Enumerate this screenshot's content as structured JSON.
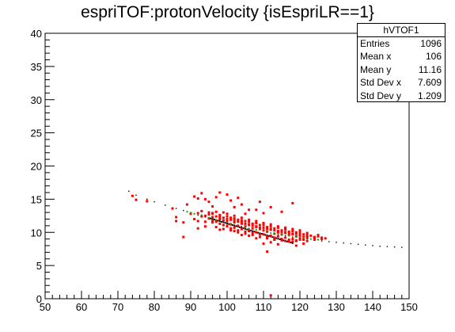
{
  "title": "espriTOF:protonVelocity {isEspriLR==1}",
  "stats_box": {
    "name": "hVTOF1",
    "rows": [
      {
        "label": "Entries",
        "value": "1096"
      },
      {
        "label": "Mean x",
        "value": "106"
      },
      {
        "label": "Mean y",
        "value": "11.16"
      },
      {
        "label": "Std Dev x",
        "value": "7.609"
      },
      {
        "label": "Std Dev y",
        "value": "1.209"
      }
    ]
  },
  "colors": {
    "marker_primary": "#ff0000",
    "marker_trend": "#000000",
    "marker_highlight": "#00aa00",
    "axes": "#000000",
    "background": "#ffffff"
  },
  "chart_data": {
    "type": "scatter",
    "title": "espriTOF:protonVelocity {isEspriLR==1}",
    "xlabel": "",
    "ylabel": "",
    "xlim": [
      50,
      150
    ],
    "ylim": [
      0,
      40
    ],
    "x_ticks": [
      50,
      60,
      70,
      80,
      90,
      100,
      110,
      120,
      130,
      140,
      150
    ],
    "y_ticks": [
      0,
      5,
      10,
      15,
      20,
      25,
      30,
      35,
      40
    ],
    "grid": false,
    "legend": "stats box top-right",
    "series": [
      {
        "trend_points": [
          [
            73,
            16.2
          ],
          [
            75,
            15.6
          ],
          [
            78,
            15.0
          ],
          [
            80,
            14.6
          ],
          [
            83,
            14.1
          ],
          [
            86,
            13.6
          ],
          [
            88,
            13.3
          ],
          [
            90,
            13.0
          ],
          [
            92,
            12.6
          ],
          [
            94,
            12.3
          ],
          [
            96,
            12.0
          ],
          [
            98,
            11.7
          ],
          [
            100,
            11.4
          ],
          [
            102,
            11.1
          ],
          [
            104,
            10.9
          ],
          [
            106,
            10.6
          ],
          [
            108,
            10.4
          ],
          [
            110,
            10.2
          ],
          [
            112,
            9.9
          ],
          [
            114,
            9.7
          ],
          [
            116,
            9.5
          ],
          [
            118,
            9.3
          ],
          [
            120,
            9.1
          ],
          [
            122,
            9.0
          ],
          [
            124,
            8.8
          ],
          [
            126,
            8.7
          ],
          [
            128,
            8.6
          ],
          [
            130,
            8.5
          ],
          [
            132,
            8.4
          ],
          [
            134,
            8.3
          ],
          [
            136,
            8.2
          ],
          [
            138,
            8.1
          ],
          [
            140,
            8.0
          ],
          [
            142,
            7.9
          ],
          [
            144,
            7.85
          ],
          [
            146,
            7.8
          ],
          [
            148,
            7.75
          ]
        ],
        "highlight_points": [
          [
            89,
            13.1
          ],
          [
            90,
            12.9
          ],
          [
            91,
            12.8
          ],
          [
            93,
            12.6
          ],
          [
            95,
            12.2
          ],
          [
            97,
            11.9
          ],
          [
            101,
            11.3
          ],
          [
            105,
            10.7
          ],
          [
            108,
            10.4
          ],
          [
            111,
            10.0
          ],
          [
            113,
            9.8
          ],
          [
            115,
            9.6
          ],
          [
            117,
            9.5
          ],
          [
            119,
            9.3
          ],
          [
            121,
            9.2
          ],
          [
            123,
            9.0
          ],
          [
            125,
            8.9
          ]
        ],
        "scatter_points": [
          [
            74,
            15.5
          ],
          [
            75,
            14.9
          ],
          [
            78,
            14.7
          ],
          [
            85,
            13.6
          ],
          [
            86,
            12.3
          ],
          [
            88,
            11.5
          ],
          [
            89,
            14.2
          ],
          [
            90,
            12.8
          ],
          [
            91,
            15.4
          ],
          [
            92,
            15.1
          ],
          [
            93,
            15.9
          ],
          [
            94,
            15.0
          ],
          [
            95,
            14.6
          ],
          [
            96,
            13.9
          ],
          [
            97,
            15.3
          ],
          [
            98,
            16.0
          ],
          [
            99,
            13.0
          ],
          [
            100,
            15.7
          ],
          [
            101,
            14.8
          ],
          [
            102,
            13.8
          ],
          [
            103,
            15.2
          ],
          [
            104,
            14.2
          ],
          [
            105,
            12.8
          ],
          [
            106,
            13.4
          ],
          [
            108,
            13.4
          ],
          [
            109,
            14.6
          ],
          [
            110,
            12.9
          ],
          [
            112,
            13.8
          ],
          [
            115,
            13.1
          ],
          [
            116,
            10.6
          ],
          [
            118,
            14.4
          ],
          [
            120,
            10.1
          ],
          [
            86,
            11.7
          ],
          [
            88,
            9.3
          ],
          [
            92,
            10.6
          ],
          [
            94,
            10.9
          ],
          [
            96,
            11.8
          ],
          [
            98,
            10.4
          ],
          [
            100,
            10.9
          ],
          [
            102,
            10.2
          ],
          [
            104,
            9.6
          ],
          [
            106,
            9.5
          ],
          [
            108,
            9.1
          ],
          [
            110,
            8.3
          ],
          [
            111,
            7.1
          ],
          [
            112,
            8.5
          ],
          [
            113,
            8.9
          ],
          [
            114,
            8.2
          ],
          [
            116,
            8.7
          ],
          [
            118,
            8.6
          ],
          [
            119,
            8.0
          ],
          [
            120,
            8.9
          ],
          [
            121,
            8.3
          ],
          [
            122,
            8.7
          ],
          [
            124,
            8.9
          ],
          [
            125,
            9.6
          ],
          [
            126,
            9.2
          ],
          [
            127,
            9.1
          ],
          [
            92,
            12.9
          ],
          [
            93,
            12.4
          ],
          [
            94,
            12.5
          ],
          [
            95,
            12.1
          ],
          [
            96,
            12.3
          ],
          [
            97,
            11.6
          ],
          [
            98,
            12.0
          ],
          [
            99,
            11.8
          ],
          [
            100,
            11.7
          ],
          [
            101,
            11.2
          ],
          [
            102,
            11.5
          ],
          [
            103,
            11.0
          ],
          [
            104,
            11.3
          ],
          [
            105,
            10.9
          ],
          [
            106,
            11.1
          ],
          [
            107,
            10.6
          ],
          [
            108,
            10.8
          ],
          [
            109,
            10.5
          ],
          [
            110,
            10.3
          ],
          [
            111,
            10.1
          ],
          [
            112,
            10.4
          ],
          [
            113,
            9.8
          ],
          [
            114,
            10.0
          ],
          [
            115,
            9.7
          ],
          [
            116,
            9.9
          ],
          [
            117,
            9.6
          ],
          [
            118,
            9.8
          ],
          [
            119,
            9.4
          ],
          [
            120,
            9.6
          ],
          [
            121,
            9.3
          ],
          [
            95,
            12.7
          ],
          [
            96,
            11.5
          ],
          [
            97,
            12.4
          ],
          [
            98,
            11.3
          ],
          [
            99,
            12.2
          ],
          [
            100,
            11.0
          ],
          [
            101,
            11.9
          ],
          [
            102,
            10.7
          ],
          [
            103,
            11.6
          ],
          [
            104,
            10.5
          ],
          [
            105,
            11.3
          ],
          [
            106,
            10.2
          ],
          [
            107,
            11.0
          ],
          [
            108,
            10.0
          ],
          [
            109,
            10.7
          ],
          [
            110,
            9.7
          ],
          [
            111,
            10.5
          ],
          [
            112,
            9.5
          ],
          [
            113,
            10.3
          ],
          [
            114,
            9.4
          ],
          [
            115,
            10.1
          ],
          [
            116,
            9.2
          ],
          [
            117,
            9.9
          ],
          [
            118,
            9.0
          ],
          [
            119,
            9.8
          ],
          [
            120,
            9.1
          ],
          [
            121,
            9.7
          ],
          [
            122,
            9.2
          ],
          [
            123,
            9.5
          ],
          [
            124,
            9.3
          ],
          [
            125,
            9.4
          ],
          [
            126,
            9.0
          ],
          [
            91,
            12.0
          ],
          [
            92,
            11.7
          ],
          [
            93,
            13.2
          ],
          [
            94,
            11.6
          ],
          [
            95,
            13.0
          ],
          [
            96,
            12.8
          ],
          [
            97,
            13.1
          ],
          [
            98,
            12.6
          ],
          [
            99,
            11.1
          ],
          [
            100,
            12.4
          ],
          [
            101,
            10.6
          ],
          [
            102,
            12.1
          ],
          [
            103,
            10.3
          ],
          [
            104,
            11.8
          ],
          [
            105,
            10.1
          ],
          [
            106,
            11.6
          ],
          [
            107,
            9.9
          ],
          [
            108,
            11.4
          ],
          [
            109,
            9.7
          ],
          [
            110,
            11.1
          ],
          [
            111,
            9.3
          ],
          [
            112,
            10.9
          ],
          [
            113,
            9.2
          ],
          [
            114,
            10.7
          ],
          [
            115,
            9.0
          ],
          [
            116,
            10.4
          ],
          [
            117,
            8.9
          ],
          [
            118,
            10.2
          ],
          [
            119,
            8.8
          ],
          [
            120,
            9.9
          ],
          [
            121,
            8.9
          ],
          [
            122,
            9.6
          ],
          [
            97,
            10.8
          ],
          [
            99,
            10.5
          ],
          [
            101,
            10.3
          ],
          [
            103,
            10.0
          ],
          [
            105,
            9.8
          ],
          [
            107,
            9.6
          ],
          [
            109,
            9.3
          ],
          [
            111,
            9.1
          ],
          [
            113,
            8.9
          ],
          [
            115,
            8.8
          ],
          [
            117,
            8.6
          ],
          [
            119,
            8.7
          ],
          [
            100,
            12.8
          ],
          [
            102,
            12.5
          ],
          [
            104,
            12.2
          ],
          [
            106,
            11.9
          ],
          [
            108,
            11.7
          ],
          [
            110,
            11.4
          ],
          [
            112,
            11.2
          ],
          [
            114,
            10.9
          ],
          [
            116,
            10.7
          ],
          [
            118,
            10.5
          ],
          [
            120,
            10.3
          ],
          [
            122,
            9.9
          ],
          [
            101,
            12.2
          ],
          [
            103,
            11.9
          ],
          [
            105,
            11.7
          ],
          [
            107,
            11.3
          ],
          [
            109,
            11.1
          ],
          [
            111,
            10.8
          ],
          [
            113,
            10.6
          ],
          [
            115,
            10.3
          ],
          [
            117,
            10.1
          ],
          [
            119,
            10.0
          ],
          [
            96,
            12.9
          ],
          [
            98,
            12.3
          ],
          [
            100,
            12.0
          ],
          [
            102,
            11.8
          ],
          [
            104,
            11.5
          ],
          [
            106,
            11.2
          ],
          [
            108,
            10.9
          ],
          [
            110,
            10.7
          ],
          [
            112,
            10.5
          ],
          [
            114,
            10.2
          ],
          [
            116,
            10.0
          ],
          [
            118,
            9.7
          ],
          [
            120,
            9.5
          ],
          [
            122,
            9.4
          ],
          [
            124,
            9.1
          ],
          [
            112,
            0.5
          ]
        ]
      }
    ]
  }
}
